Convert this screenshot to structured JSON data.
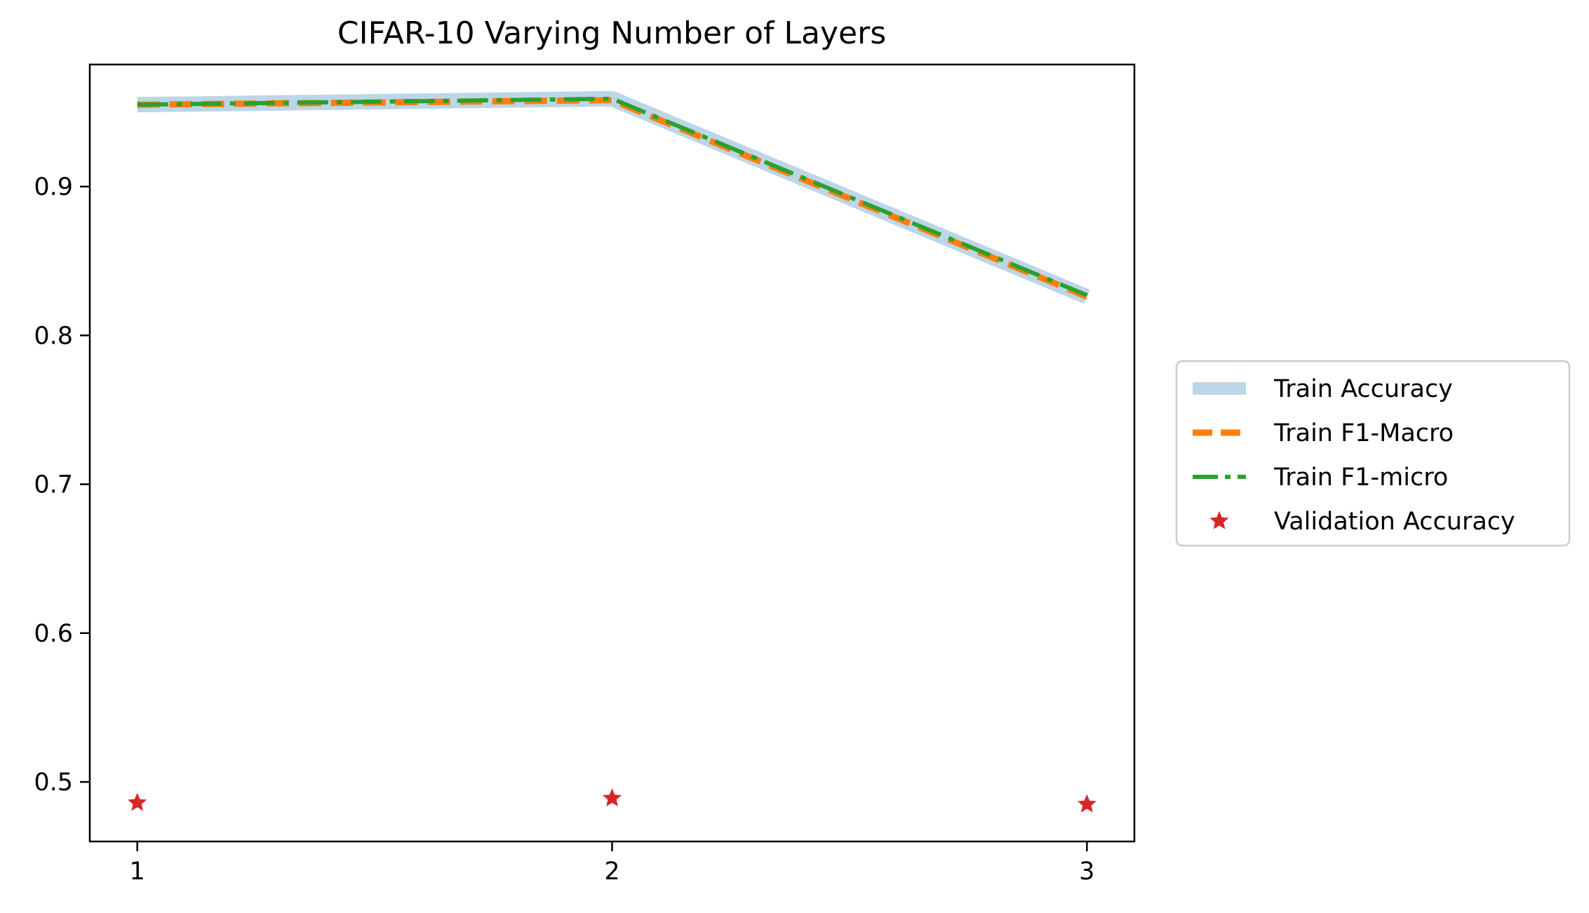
{
  "chart_data": {
    "type": "line",
    "title": "CIFAR-10 Varying Number of Layers",
    "xlabel": "",
    "ylabel": "",
    "x": [
      1,
      2,
      3
    ],
    "xlim": [
      0.9,
      3.1
    ],
    "ylim": [
      0.46,
      0.982
    ],
    "xticks": [
      1,
      2,
      3
    ],
    "yticks": [
      0.5,
      0.6,
      0.7,
      0.8,
      0.9
    ],
    "grid": false,
    "legend_position": "center-right, outside plot",
    "series": [
      {
        "name": "Train Accuracy",
        "values": [
          0.955,
          0.959,
          0.826
        ],
        "color": "#bcd6e8",
        "style": "solid-thick"
      },
      {
        "name": "Train F1-Macro",
        "values": [
          0.955,
          0.958,
          0.826
        ],
        "color": "#ff7f0e",
        "style": "dashed"
      },
      {
        "name": "Train F1-micro",
        "values": [
          0.955,
          0.959,
          0.827
        ],
        "color": "#2ca02c",
        "style": "dashdot"
      },
      {
        "name": "Validation Accuracy",
        "values": [
          0.486,
          0.489,
          0.485
        ],
        "color": "#d62728",
        "style": "star-marker"
      }
    ]
  }
}
